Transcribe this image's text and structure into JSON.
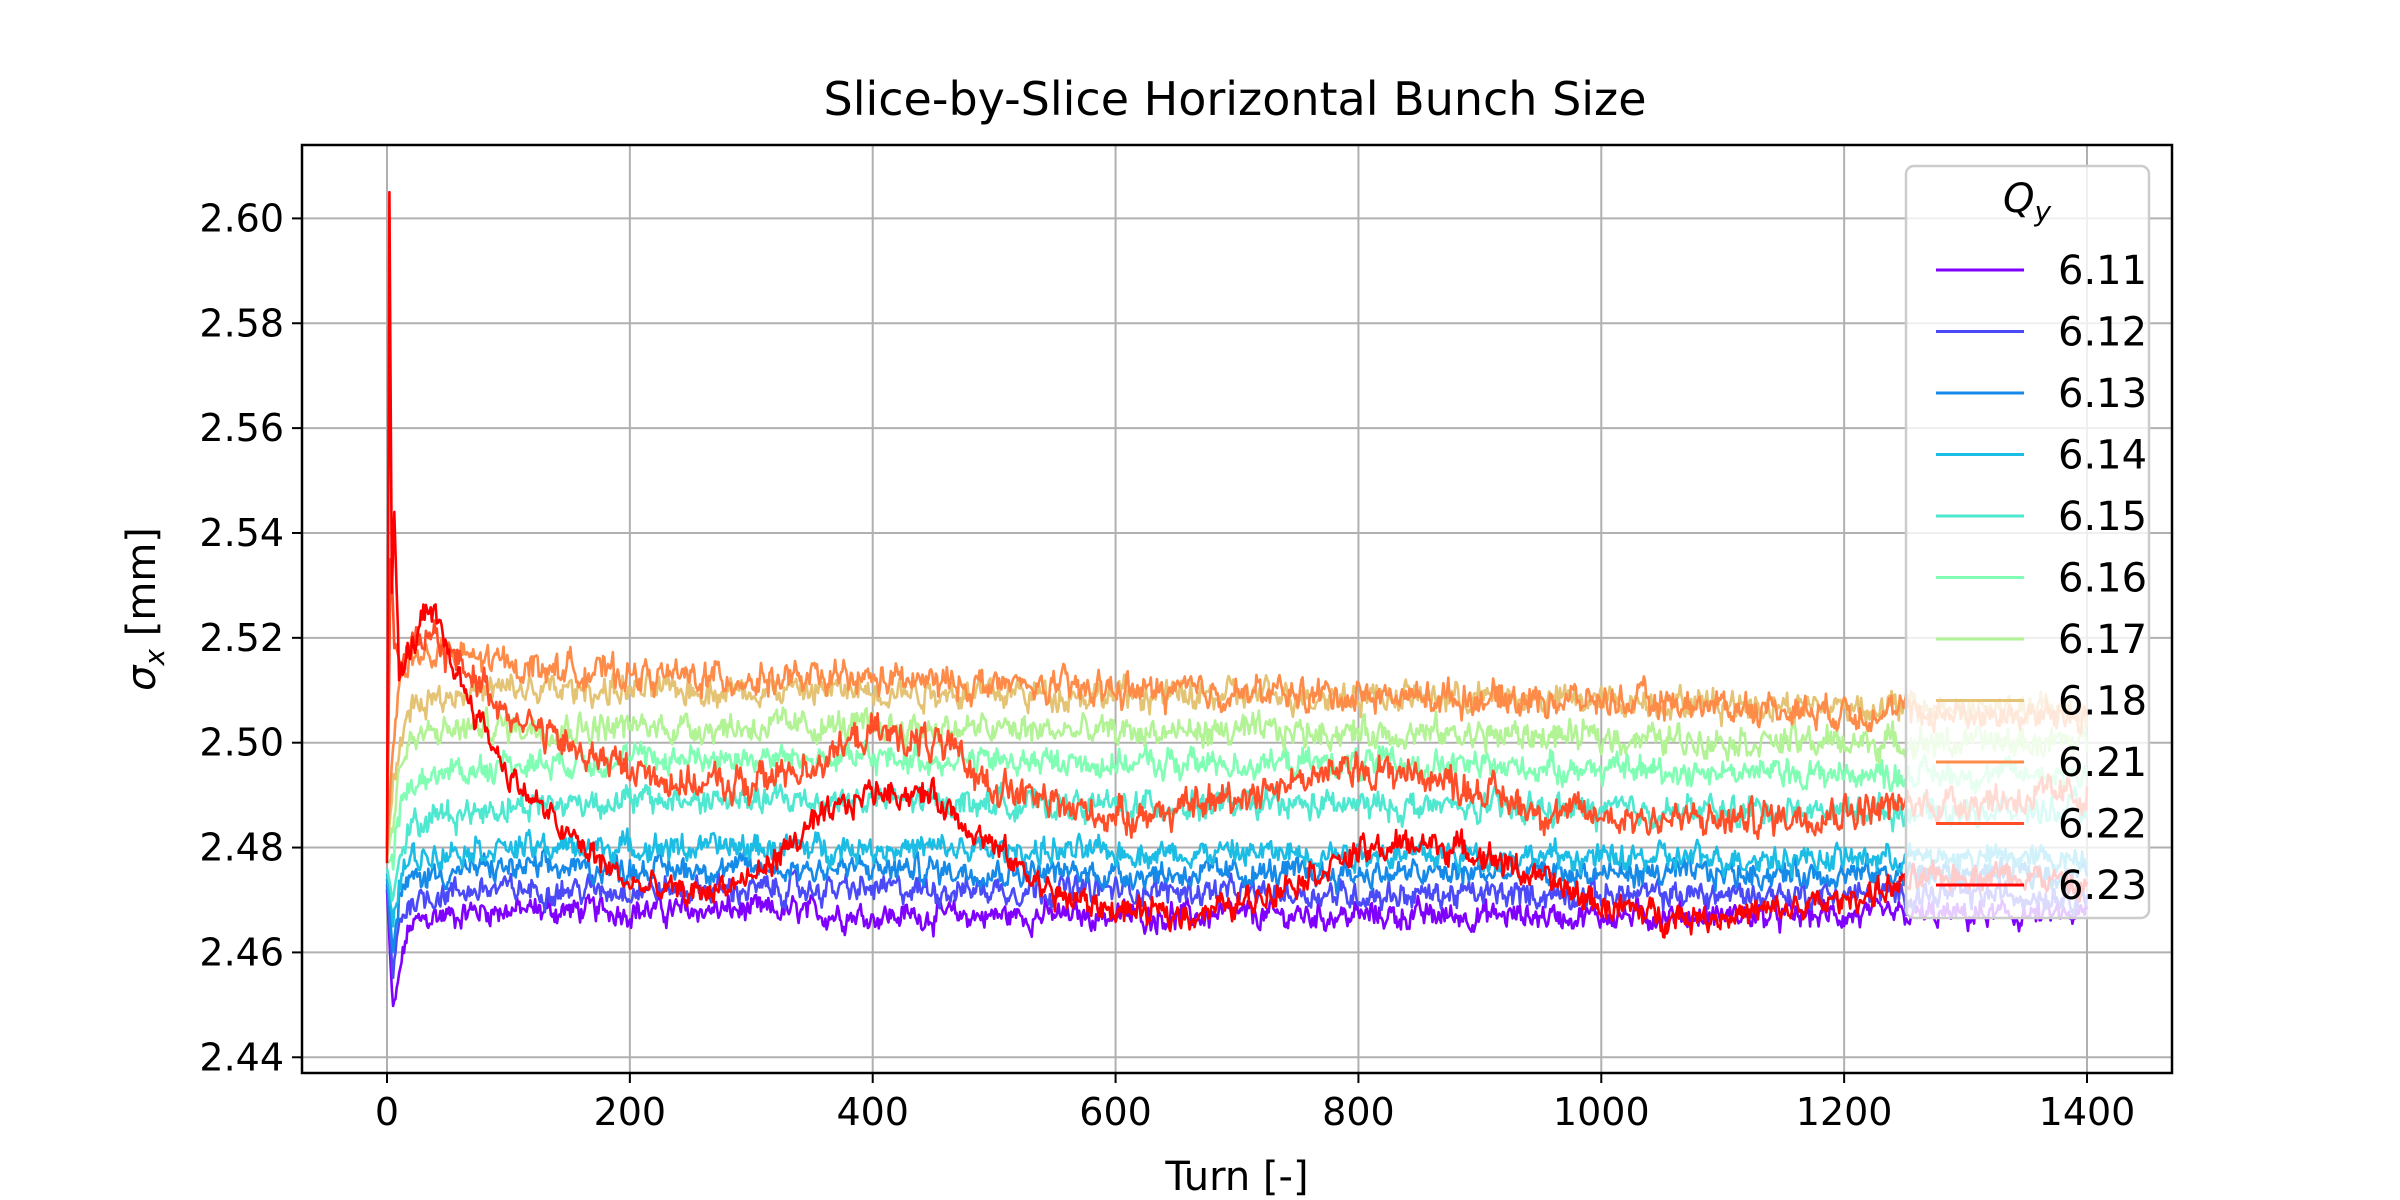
{
  "chart_data": {
    "type": "line",
    "title": "Slice-by-Slice Horizontal Bunch Size",
    "xlabel": "Turn [-]",
    "ylabel": "σx [mm]",
    "ylabel_main": "σ",
    "ylabel_sub": "x",
    "ylabel_unit": " [mm]",
    "xlim": [
      -70,
      1470
    ],
    "ylim": [
      2.437,
      2.614
    ],
    "xticks": [
      0,
      200,
      400,
      600,
      800,
      1000,
      1200,
      1400
    ],
    "yticks": [
      2.44,
      2.46,
      2.48,
      2.5,
      2.52,
      2.54,
      2.56,
      2.58,
      2.6
    ],
    "ytick_labels": [
      "2.44",
      "2.46",
      "2.48",
      "2.50",
      "2.52",
      "2.54",
      "2.56",
      "2.58",
      "2.60"
    ],
    "grid": true,
    "legend": {
      "title": "Qy",
      "title_main": "Q",
      "title_sub": "y",
      "placement": "top-right"
    },
    "series": [
      {
        "name": "6.11",
        "color": "#8000ff",
        "x": [
          0,
          5,
          10,
          15,
          20,
          30,
          40,
          50,
          75,
          100,
          150,
          200,
          300,
          400,
          500,
          600,
          700,
          800,
          900,
          1000,
          1100,
          1200,
          1300,
          1400
        ],
        "y": [
          2.472,
          2.448,
          2.455,
          2.462,
          2.465,
          2.466,
          2.467,
          2.467,
          2.468,
          2.468,
          2.468,
          2.468,
          2.468,
          2.467,
          2.467,
          2.467,
          2.467,
          2.467,
          2.467,
          2.467,
          2.467,
          2.467,
          2.467,
          2.467
        ],
        "noise": 0.0017
      },
      {
        "name": "6.12",
        "color": "#4b4af9",
        "x": [
          0,
          5,
          10,
          20,
          40,
          75,
          100,
          200,
          300,
          400,
          600,
          800,
          1000,
          1200,
          1400
        ],
        "y": [
          2.473,
          2.455,
          2.466,
          2.47,
          2.471,
          2.472,
          2.472,
          2.472,
          2.472,
          2.472,
          2.472,
          2.471,
          2.471,
          2.471,
          2.471
        ],
        "noise": 0.0017
      },
      {
        "name": "6.13",
        "color": "#168ae9",
        "x": [
          0,
          5,
          10,
          20,
          40,
          75,
          100,
          200,
          300,
          400,
          600,
          800,
          1000,
          1200,
          1400
        ],
        "y": [
          2.474,
          2.46,
          2.47,
          2.474,
          2.475,
          2.476,
          2.476,
          2.476,
          2.476,
          2.476,
          2.475,
          2.475,
          2.475,
          2.475,
          2.475
        ],
        "noise": 0.0017
      },
      {
        "name": "6.14",
        "color": "#1cbde4",
        "x": [
          0,
          5,
          10,
          20,
          40,
          75,
          100,
          200,
          300,
          400,
          600,
          800,
          1000,
          1200,
          1400
        ],
        "y": [
          2.475,
          2.465,
          2.474,
          2.478,
          2.479,
          2.48,
          2.48,
          2.48,
          2.48,
          2.48,
          2.479,
          2.479,
          2.478,
          2.478,
          2.478
        ],
        "noise": 0.0017
      },
      {
        "name": "6.15",
        "color": "#4ee8d0",
        "x": [
          0,
          5,
          10,
          20,
          40,
          75,
          100,
          200,
          300,
          400,
          600,
          800,
          1000,
          1200,
          1400
        ],
        "y": [
          2.476,
          2.47,
          2.48,
          2.484,
          2.486,
          2.487,
          2.488,
          2.489,
          2.489,
          2.489,
          2.488,
          2.488,
          2.487,
          2.487,
          2.487
        ],
        "noise": 0.0018
      },
      {
        "name": "6.16",
        "color": "#80ffb4",
        "x": [
          0,
          5,
          10,
          20,
          40,
          75,
          100,
          200,
          300,
          400,
          600,
          800,
          1000,
          1200,
          1400
        ],
        "y": [
          2.477,
          2.478,
          2.487,
          2.492,
          2.494,
          2.495,
          2.496,
          2.497,
          2.497,
          2.497,
          2.496,
          2.496,
          2.495,
          2.494,
          2.494
        ],
        "noise": 0.0018
      },
      {
        "name": "6.17",
        "color": "#b2f396",
        "x": [
          0,
          5,
          10,
          20,
          40,
          75,
          100,
          200,
          300,
          400,
          600,
          800,
          1000,
          1200,
          1400
        ],
        "y": [
          2.478,
          2.485,
          2.495,
          2.5,
          2.502,
          2.503,
          2.503,
          2.503,
          2.503,
          2.503,
          2.502,
          2.502,
          2.501,
          2.5,
          2.5
        ],
        "noise": 0.0019
      },
      {
        "name": "6.18",
        "color": "#e4c374",
        "x": [
          0,
          5,
          10,
          20,
          40,
          75,
          100,
          200,
          300,
          400,
          600,
          800,
          1000,
          1200,
          1400
        ],
        "y": [
          2.479,
          2.492,
          2.502,
          2.507,
          2.509,
          2.51,
          2.51,
          2.51,
          2.51,
          2.51,
          2.509,
          2.509,
          2.508,
          2.507,
          2.506
        ],
        "noise": 0.0019
      },
      {
        "name": "6.21",
        "color": "#ff8b49",
        "x": [
          0,
          5,
          10,
          20,
          40,
          75,
          100,
          200,
          300,
          400,
          600,
          800,
          1000,
          1200,
          1400
        ],
        "y": [
          2.48,
          2.5,
          2.512,
          2.516,
          2.517,
          2.516,
          2.515,
          2.513,
          2.512,
          2.512,
          2.51,
          2.509,
          2.508,
          2.506,
          2.505
        ],
        "noise": 0.002
      },
      {
        "name": "6.22",
        "color": "#ff4e28",
        "x": [
          0,
          3,
          6,
          10,
          20,
          35,
          50,
          75,
          100,
          150,
          200,
          250,
          300,
          350,
          400,
          450,
          500,
          550,
          600,
          650,
          700,
          750,
          800,
          850,
          900,
          950,
          1000,
          1100,
          1200,
          1300,
          1400
        ],
        "y": [
          2.48,
          2.535,
          2.52,
          2.516,
          2.518,
          2.52,
          2.517,
          2.512,
          2.506,
          2.499,
          2.495,
          2.492,
          2.492,
          2.496,
          2.502,
          2.5,
          2.492,
          2.488,
          2.486,
          2.487,
          2.49,
          2.493,
          2.495,
          2.494,
          2.491,
          2.487,
          2.486,
          2.485,
          2.487,
          2.489,
          2.49
        ],
        "noise": 0.0022
      },
      {
        "name": "6.23",
        "color": "#ff0000",
        "x": [
          0,
          2,
          4,
          6,
          10,
          15,
          20,
          30,
          40,
          60,
          80,
          100,
          150,
          200,
          250,
          300,
          350,
          400,
          450,
          500,
          550,
          600,
          650,
          700,
          750,
          800,
          850,
          900,
          950,
          1000,
          1050,
          1100,
          1150,
          1200,
          1250,
          1300,
          1350,
          1400
        ],
        "y": [
          2.477,
          2.605,
          2.53,
          2.545,
          2.512,
          2.515,
          2.518,
          2.524,
          2.523,
          2.512,
          2.503,
          2.494,
          2.482,
          2.473,
          2.471,
          2.474,
          2.484,
          2.491,
          2.49,
          2.48,
          2.471,
          2.468,
          2.467,
          2.469,
          2.474,
          2.479,
          2.481,
          2.479,
          2.474,
          2.469,
          2.467,
          2.467,
          2.468,
          2.47,
          2.473,
          2.475,
          2.475,
          2.472
        ],
        "noise": 0.0018
      }
    ]
  }
}
